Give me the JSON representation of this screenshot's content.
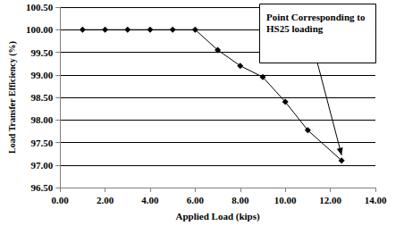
{
  "chart_data": {
    "type": "line",
    "x_label": "Applied Load (kips)",
    "y_label": "Load Transfer Efficiency (%)",
    "x": [
      1,
      2,
      3,
      4,
      5,
      6,
      7,
      8,
      9,
      10,
      11,
      12.5
    ],
    "values": [
      100,
      100,
      100,
      100,
      100,
      100,
      99.55,
      99.2,
      98.95,
      98.4,
      97.77,
      97.1
    ],
    "color": "#000000",
    "marker": "diamond",
    "grid": true,
    "xlim": [
      0,
      14
    ],
    "xticks": [
      {
        "value": 0,
        "label": "0.00"
      },
      {
        "value": 2,
        "label": "2.00"
      },
      {
        "value": 4,
        "label": "4.00"
      },
      {
        "value": 6,
        "label": "6.00"
      },
      {
        "value": 8,
        "label": "8.00"
      },
      {
        "value": 10,
        "label": "10.00"
      },
      {
        "value": 12,
        "label": "12.00"
      },
      {
        "value": 14,
        "label": "14.00"
      }
    ],
    "ylim": [
      96.5,
      100.5
    ],
    "yticks": [
      {
        "value": 96.5,
        "label": "96.50"
      },
      {
        "value": 97,
        "label": "97.00"
      },
      {
        "value": 97.5,
        "label": "97.50"
      },
      {
        "value": 98,
        "label": "98.00"
      },
      {
        "value": 98.5,
        "label": "98.50"
      },
      {
        "value": 99,
        "label": "99.00"
      },
      {
        "value": 99.5,
        "label": "99.50"
      },
      {
        "value": 100,
        "label": "100.00"
      },
      {
        "value": 100.5,
        "label": "100.50"
      }
    ],
    "annotations": [
      {
        "text": "Point Corresponding to HS25 loading",
        "x": 12.5,
        "y": 97.1
      }
    ]
  }
}
